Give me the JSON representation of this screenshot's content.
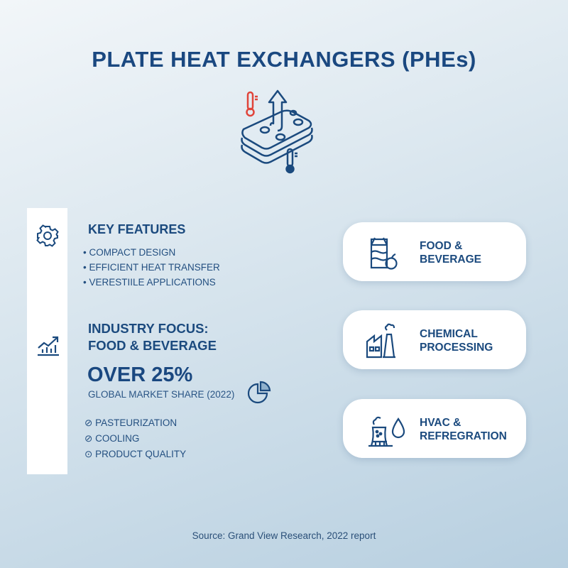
{
  "title": "PLATE HEAT EXCHANGERS (PHEs)",
  "key_features": {
    "heading": "KEY FEATURES",
    "items": [
      "COMPACT DESIGN",
      "EFFICIENT HEAT TRANSFER",
      "VERESTIILE APPLICATIONS"
    ]
  },
  "industry": {
    "heading_line1": "INDUSTRY FOCUS:",
    "heading_line2": "FOOD & BEVERAGE",
    "stat": "OVER 25%",
    "stat_label": "GLOBAL MARKET SHARE (2022)",
    "items": [
      "PASTEURIZATION",
      "COOLING",
      "PRODUCT QUALITY"
    ]
  },
  "cards": [
    {
      "line1": "FOOD &",
      "line2": "BEVERAGE",
      "icon": "milk-carton-apple-icon"
    },
    {
      "line1": "CHEMICAL",
      "line2": "PROCESSING",
      "icon": "factory-icon"
    },
    {
      "line1": "HVAC &",
      "line2": "REFREGRATION",
      "icon": "cooling-tower-droplet-icon"
    }
  ],
  "source": "Source: Grand View Research, 2022 report",
  "colors": {
    "primary": "#1b4a7e",
    "hot": "#e0443a"
  }
}
